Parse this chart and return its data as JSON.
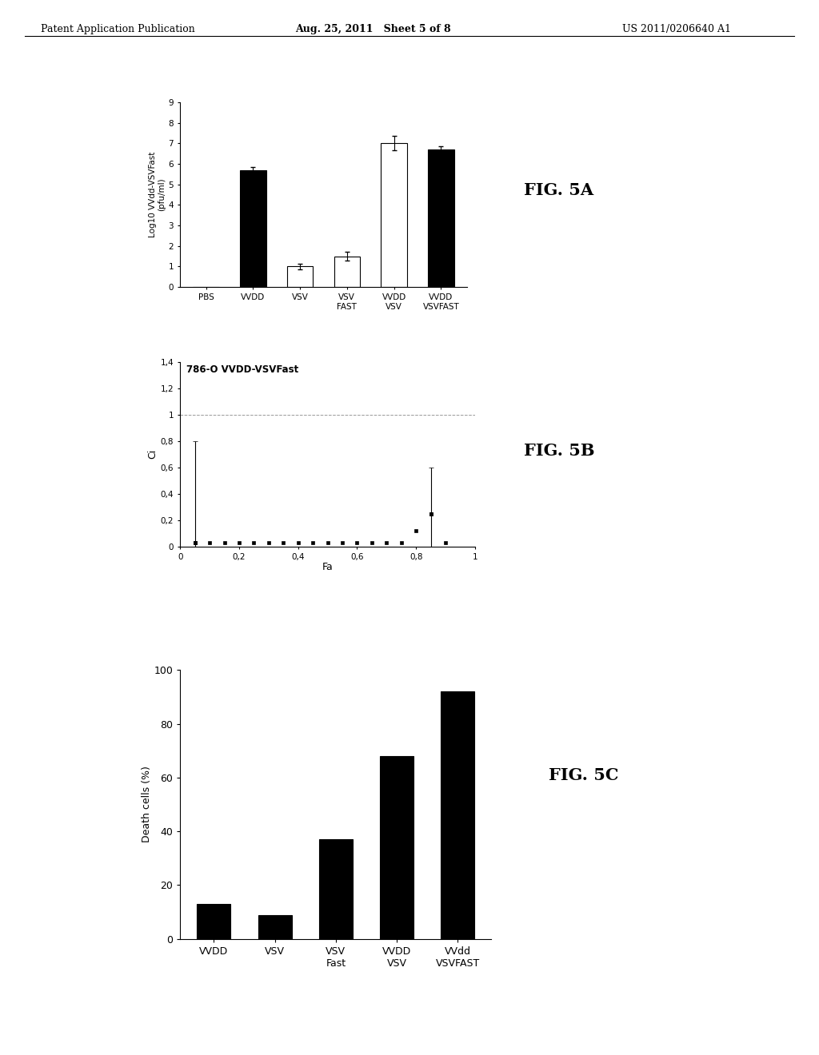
{
  "fig5a": {
    "ylabel": "Log10 VVdd-VSVFast\n(pfu/ml)",
    "ylim": [
      0,
      9
    ],
    "yticks": [
      0,
      1,
      2,
      3,
      4,
      5,
      6,
      7,
      8,
      9
    ],
    "categories": [
      "PBS",
      "VVDD",
      "VSV",
      "VSV\nFAST",
      "VVDD\nVSV",
      "VVDD\nVSVFAST"
    ],
    "values": [
      0,
      5.7,
      1.0,
      1.5,
      7.0,
      6.7
    ],
    "errors": [
      0,
      0.15,
      0.15,
      0.2,
      0.35,
      0.15
    ],
    "colors": [
      "white",
      "black",
      "white",
      "white",
      "white",
      "black"
    ],
    "bar_width": 0.55
  },
  "fig5b": {
    "title": "786-O VVDD-VSVFast",
    "xlabel": "Fa",
    "ylabel": "Ci",
    "xlim": [
      0,
      1
    ],
    "ylim": [
      0,
      1.4
    ],
    "xticks": [
      0,
      0.2,
      0.4,
      0.6,
      0.8,
      1
    ],
    "yticks": [
      0,
      0.2,
      0.4,
      0.6,
      0.8,
      1.0,
      1.2,
      1.4
    ],
    "xtick_labels": [
      "0",
      "0,2",
      "0,4",
      "0,6",
      "0,8",
      "1"
    ],
    "ytick_labels": [
      "0",
      "0,2",
      "0,4",
      "0,6",
      "0,8",
      "1",
      "1,2",
      "1,4"
    ],
    "hline_y": 1.0,
    "scatter_x": [
      0.05,
      0.1,
      0.15,
      0.2,
      0.25,
      0.3,
      0.35,
      0.4,
      0.45,
      0.5,
      0.55,
      0.6,
      0.65,
      0.7,
      0.75,
      0.8,
      0.85,
      0.9
    ],
    "scatter_y": [
      0.03,
      0.03,
      0.03,
      0.03,
      0.03,
      0.03,
      0.03,
      0.03,
      0.03,
      0.03,
      0.03,
      0.03,
      0.03,
      0.03,
      0.03,
      0.12,
      0.25,
      0.03
    ],
    "error_x": [
      0.05,
      0.85
    ],
    "error_y": [
      0.03,
      0.25
    ],
    "error_yerr": [
      0.77,
      0.35
    ]
  },
  "fig5c": {
    "ylabel": "Death cells (%)",
    "ylim": [
      0,
      100
    ],
    "yticks": [
      0,
      20,
      40,
      60,
      80,
      100
    ],
    "categories": [
      "VVDD",
      "VSV",
      "VSV\nFast",
      "VVDD\nVSV",
      "VVdd\nVSVFAST"
    ],
    "values": [
      13,
      9,
      37,
      68,
      92
    ],
    "bar_width": 0.55,
    "bar_color": "black"
  },
  "header_left": "Patent Application Publication",
  "header_center": "Aug. 25, 2011   Sheet 5 of 8",
  "header_right": "US 2011/0206640 A1",
  "fig5a_label": "FIG. 5A",
  "fig5b_label": "FIG. 5B",
  "fig5c_label": "FIG. 5C"
}
